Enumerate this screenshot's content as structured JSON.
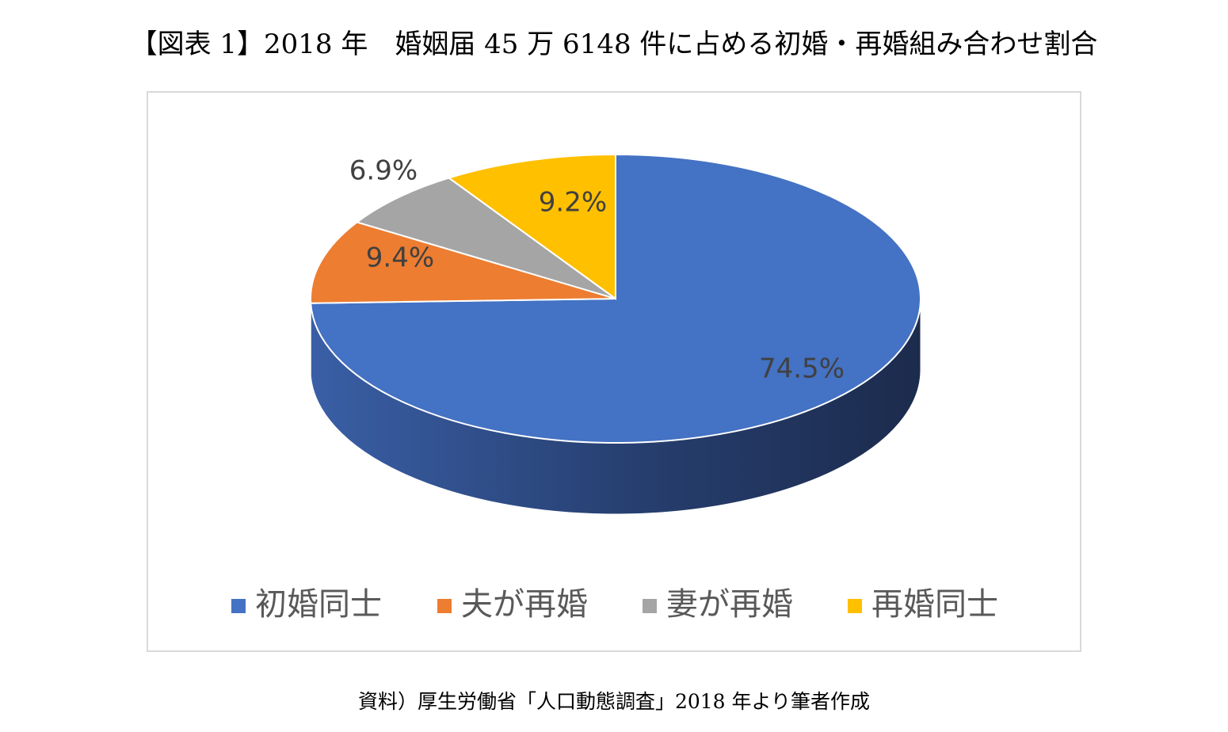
{
  "title": "【図表 1】2018 年　婚姻届 45 万 6148 件に占める初婚・再婚組み合わせ割合",
  "source": "資料）厚生労働省「人口動態調査」2018 年より筆者作成",
  "chart_data": {
    "type": "pie",
    "style": "3d",
    "title": "",
    "start_angle_deg": 0,
    "direction": "clockwise",
    "legend_position": "bottom",
    "series": [
      {
        "name": "初婚同士",
        "value": 74.5,
        "label": "74.5%",
        "color": "#4472C4",
        "side_color": "#1D2D52"
      },
      {
        "name": "夫が再婚",
        "value": 9.4,
        "label": "9.4%",
        "color": "#ED7D31",
        "side_color": "#8E4A1D"
      },
      {
        "name": "妻が再婚",
        "value": 6.9,
        "label": "6.9%",
        "color": "#A5A5A5",
        "side_color": "#636363"
      },
      {
        "name": "再婚同士",
        "value": 9.2,
        "label": "9.2%",
        "color": "#FFC000",
        "side_color": "#997300"
      }
    ]
  }
}
